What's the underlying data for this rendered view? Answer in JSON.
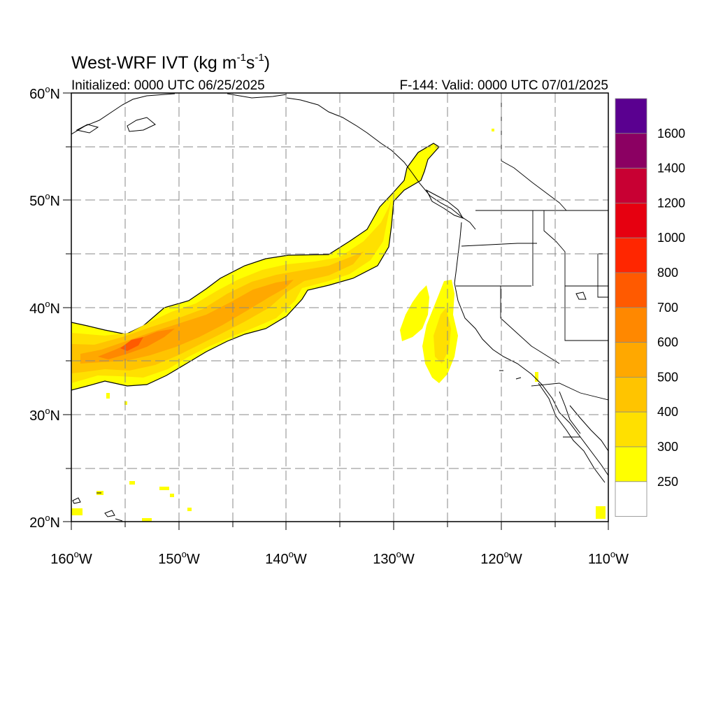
{
  "title": {
    "main": "West-WRF IVT (kg m",
    "exp1": "-1",
    "mid": "s",
    "exp2": "-1",
    "close": ")"
  },
  "subtitle": {
    "left": "Initialized: 0000 UTC 06/25/2025",
    "right": "F-144: Valid: 0000 UTC 07/01/2025"
  },
  "axes": {
    "x_ticks": [
      "160",
      "150",
      "140",
      "130",
      "120",
      "110"
    ],
    "x_suffix": "W",
    "y_ticks": [
      "60",
      "50",
      "40",
      "30",
      "20"
    ],
    "y_suffix": "N",
    "degree_symbol": "o",
    "lon_range": [
      -160,
      -110
    ],
    "lat_range": [
      20,
      60
    ],
    "grid": "dashed, every 5 degrees"
  },
  "colorbar": {
    "labels": [
      "1600",
      "1400",
      "1200",
      "1000",
      "800",
      "700",
      "600",
      "500",
      "400",
      "300",
      "250"
    ],
    "colors": [
      "#5a0090",
      "#8b0062",
      "#c80033",
      "#e60010",
      "#ff2600",
      "#ff5a00",
      "#ff8800",
      "#ffa800",
      "#ffc400",
      "#ffe000",
      "#ffff00",
      "#ffffff"
    ]
  },
  "chart_data": {
    "type": "map",
    "variable": "IVT",
    "units": "kg m-1 s-1",
    "features": [
      {
        "name": "atmospheric river core",
        "max_ivt_band": "700",
        "center_lat": 36,
        "center_lon": -154
      },
      {
        "name": "atmospheric river",
        "extent_lon": [
          -160,
          -127
        ],
        "extent_lat": [
          32,
          55
        ]
      },
      {
        "name": "offshore California band",
        "min_ivt_band": "250",
        "center_lat": 38,
        "center_lon": -125
      }
    ]
  }
}
